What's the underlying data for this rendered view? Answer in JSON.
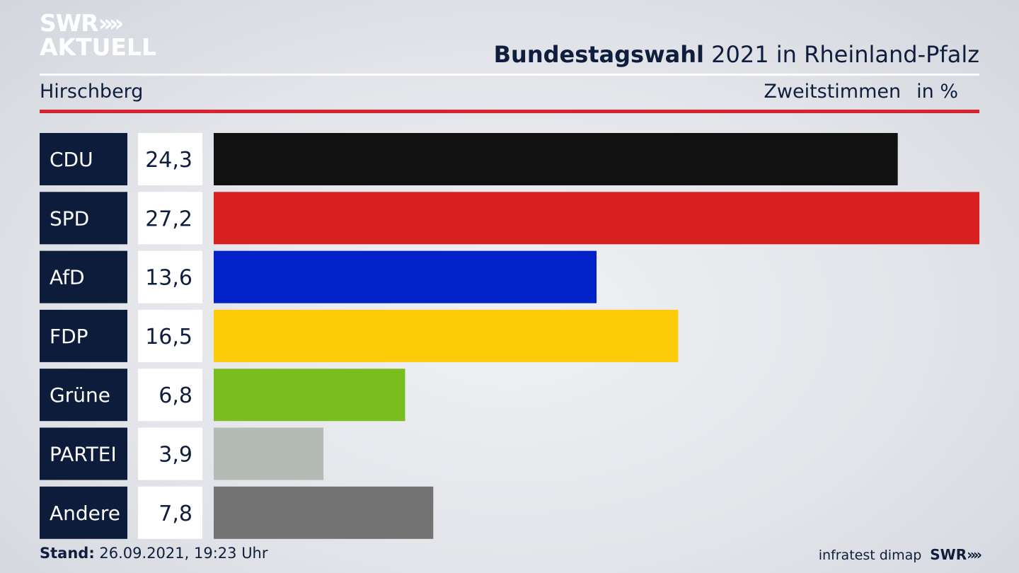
{
  "header": {
    "logo_line1": "SWR",
    "logo_chevrons": "»",
    "logo_line2": "AKTUELL",
    "title_bold": "Bundestagswahl",
    "title_rest": "2021 in Rheinland-Pfalz",
    "region": "Hirschberg",
    "measure": "Zweitstimmen",
    "unit": "in %"
  },
  "footer": {
    "stand_label": "Stand:",
    "stand_value": "26.09.2021, 19:23 Uhr",
    "source": "infratest dimap",
    "brand": "SWR",
    "brand_chevrons": "»"
  },
  "colors": {
    "label_box": "#0e1c3b",
    "value_box": "#ffffff",
    "accent_red": "#d9232d"
  },
  "chart_data": {
    "type": "bar",
    "orientation": "horizontal",
    "categories": [
      "CDU",
      "SPD",
      "AfD",
      "FDP",
      "Grüne",
      "PARTEI",
      "Andere"
    ],
    "values": [
      24.3,
      27.2,
      13.6,
      16.5,
      6.8,
      3.9,
      7.8
    ],
    "value_labels": [
      "24,3",
      "27,2",
      "13,6",
      "16,5",
      "6,8",
      "3,9",
      "7,8"
    ],
    "colors": [
      "#111111",
      "#d92020",
      "#0022c8",
      "#fdcb08",
      "#79be1e",
      "#b3bbb4",
      "#737373"
    ],
    "xlim": [
      0,
      27.2
    ],
    "grid": false,
    "legend": "none"
  }
}
